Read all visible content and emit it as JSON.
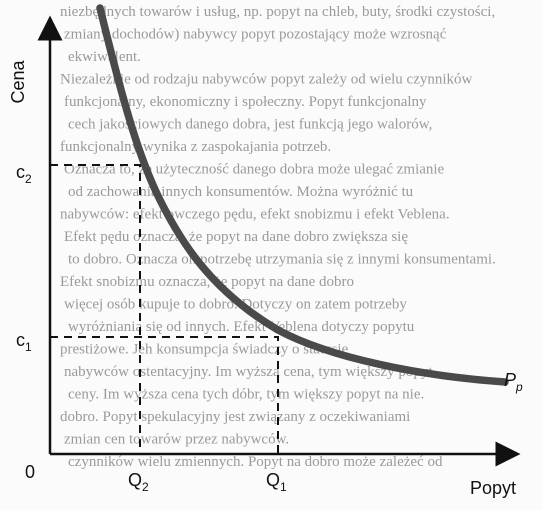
{
  "figure": {
    "y_axis_label": "Cena",
    "x_axis_label": "Popyt",
    "origin_label": "0",
    "curve_label": {
      "main": "P",
      "sub": "p"
    },
    "ticks_y": [
      {
        "main": "c",
        "sub": "2"
      },
      {
        "main": "c",
        "sub": "1"
      }
    ],
    "ticks_x": [
      {
        "main": "Q",
        "sub": "2"
      },
      {
        "main": "Q",
        "sub": "1"
      }
    ]
  },
  "background_text": [
    "niezbędnych towarów i usług, np. popyt na chleb, buty, środki czystości,",
    "zmiany dochodów) nabywcy popyt pozostający może wzrosnąć",
    "ekwiwalent.",
    "Niezależnie od rodzaju nabywców popyt zależy od wielu czynników",
    "funkcjonalny, ekonomiczny i społeczny. Popyt funkcjonalny",
    "cech jakościowych danego dobra, jest funkcją jego walorów,",
    "funkcjonalny wynika z zaspokajania potrzeb.",
    "Oznacza to, że użyteczność danego dobra może ulegać zmianie",
    "od zachowania innych konsumentów. Można wyróżnić tu",
    "nabywców: efekt owczego pędu, efekt snobizmu i efekt Veblena.",
    "Efekt pędu oznacza, że popyt na dane dobro zwiększa się",
    "to dobro. Oznacza on potrzebę utrzymania się z innymi konsumentami.",
    "Efekt snobizmu oznacza, że popyt na dane dobro",
    "więcej osób kupuje to dobro. Dotyczy on zatem potrzeby",
    "wyróżniania się od innych. Efekt Veblena dotyczy popytu",
    "prestiżowe. Jeh konsumpcja świadczy o statusie",
    "nabywców ostentacyjny. Im wyższa cena, tym większy popyt",
    "ceny. Im wyższa cena tych dóbr, tym większy popyt na nie.",
    "dobro. Popyt spekulacyjny jest związany z oczekiwaniami",
    "zmian cen towarów przez nabywców.",
    "czynników wielu zmiennych. Popyt na dobro może zależeć od"
  ]
}
